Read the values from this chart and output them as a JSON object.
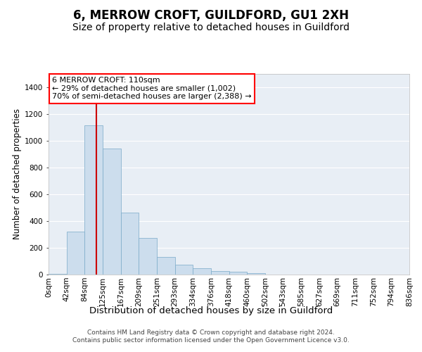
{
  "title": "6, MERROW CROFT, GUILDFORD, GU1 2XH",
  "subtitle": "Size of property relative to detached houses in Guildford",
  "xlabel": "Distribution of detached houses by size in Guildford",
  "ylabel": "Number of detached properties",
  "footer_line1": "Contains HM Land Registry data © Crown copyright and database right 2024.",
  "footer_line2": "Contains public sector information licensed under the Open Government Licence v3.0.",
  "bar_labels": [
    "0sqm",
    "42sqm",
    "84sqm",
    "125sqm",
    "167sqm",
    "209sqm",
    "251sqm",
    "293sqm",
    "334sqm",
    "376sqm",
    "418sqm",
    "460sqm",
    "502sqm",
    "543sqm",
    "585sqm",
    "627sqm",
    "669sqm",
    "711sqm",
    "752sqm",
    "794sqm",
    "836sqm"
  ],
  "bar_values": [
    5,
    320,
    1115,
    940,
    465,
    275,
    130,
    75,
    45,
    25,
    20,
    10,
    0,
    0,
    0,
    0,
    0,
    0,
    0,
    0
  ],
  "bar_color": "#ccdded",
  "bar_edge_color": "#7aaac8",
  "vline_color": "#cc0000",
  "vline_pos": 2.634,
  "ylim_max": 1500,
  "yticks": [
    0,
    200,
    400,
    600,
    800,
    1000,
    1200,
    1400
  ],
  "annotation_title": "6 MERROW CROFT: 110sqm",
  "annotation_line2": "← 29% of detached houses are smaller (1,002)",
  "annotation_line3": "70% of semi-detached houses are larger (2,388) →",
  "bg_color": "#e8eef5",
  "grid_color": "#ffffff",
  "title_fontsize": 12,
  "subtitle_fontsize": 10,
  "xlabel_fontsize": 9.5,
  "ylabel_fontsize": 8.5,
  "tick_fontsize": 7.5,
  "annotation_fontsize": 8,
  "footer_fontsize": 6.5
}
